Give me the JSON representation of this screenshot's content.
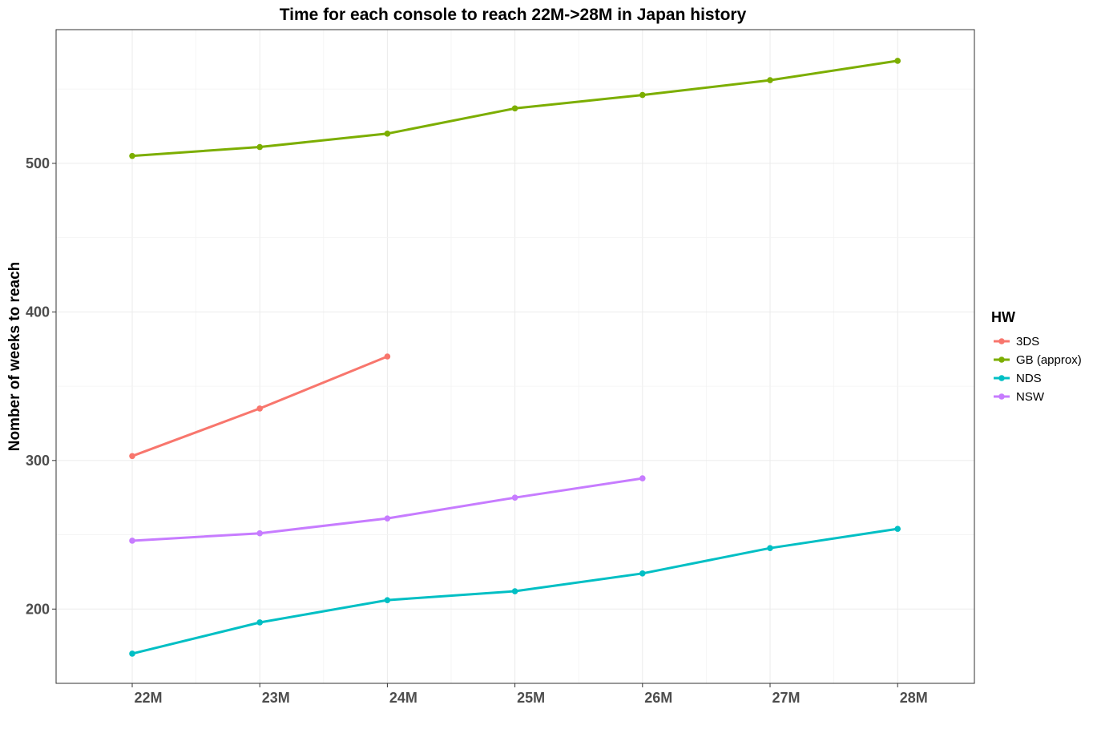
{
  "chart_data": {
    "type": "line",
    "title": "Time for each console to reach 22M->28M in Japan history",
    "xlabel": "",
    "ylabel": "Nomber of weeks to reach",
    "categories": [
      "22M",
      "23M",
      "24M",
      "25M",
      "26M",
      "27M",
      "28M"
    ],
    "y_ticks": [
      200,
      300,
      400,
      500
    ],
    "ylim": [
      150,
      590
    ],
    "grid": true,
    "legend": {
      "title": "HW",
      "position": "right"
    },
    "series": [
      {
        "name": "3DS",
        "color": "#F8766D",
        "values": [
          303,
          335,
          370,
          null,
          null,
          null,
          null
        ]
      },
      {
        "name": "GB (approx)",
        "color": "#7CAE00",
        "values": [
          505,
          511,
          520,
          537,
          546,
          556,
          569
        ]
      },
      {
        "name": "NDS",
        "color": "#00BFC4",
        "values": [
          170,
          191,
          206,
          212,
          224,
          241,
          254
        ]
      },
      {
        "name": "NSW",
        "color": "#C77CFF",
        "values": [
          246,
          251,
          261,
          275,
          288,
          null,
          null
        ]
      }
    ]
  }
}
